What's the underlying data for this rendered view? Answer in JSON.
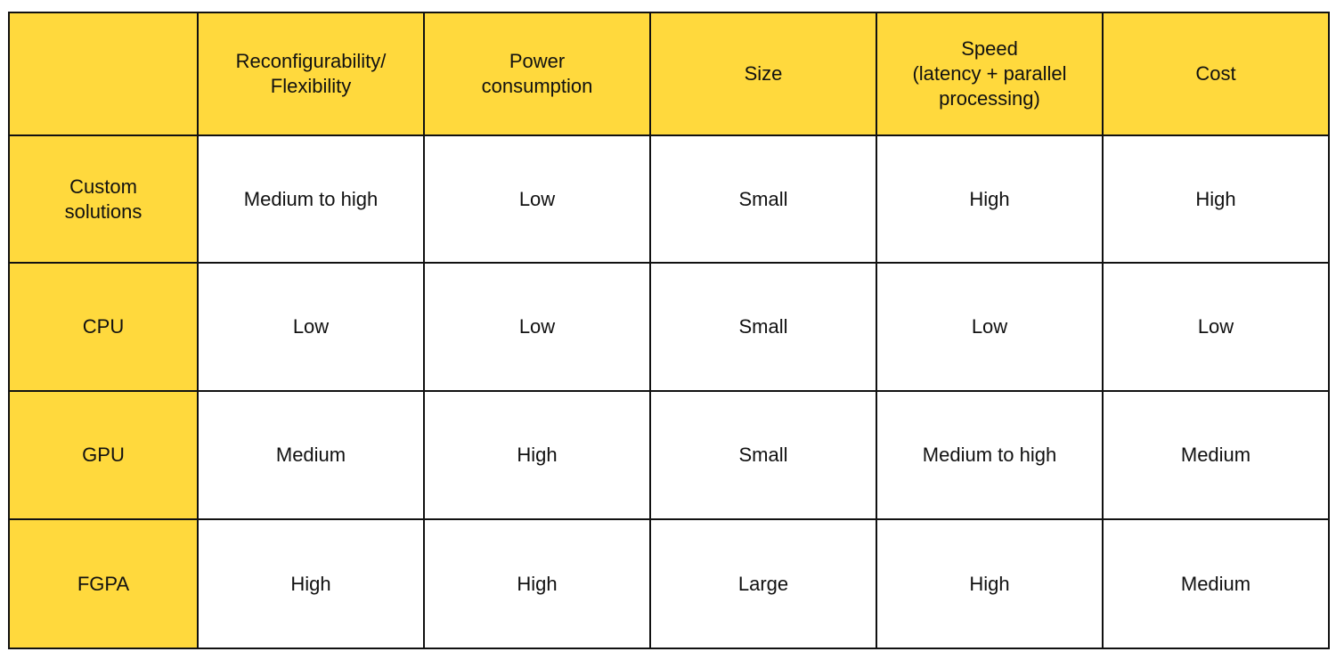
{
  "chart_data": {
    "type": "table",
    "columns": [
      "",
      "Reconfigurability/\nFlexibility",
      "Power\nconsumption",
      "Size",
      "Speed\n(latency + parallel\nprocessing)",
      "Cost"
    ],
    "rows": [
      {
        "label": "Custom\nsolutions",
        "cells": [
          "Medium to high",
          "Low",
          "Small",
          "High",
          "High"
        ]
      },
      {
        "label": "CPU",
        "cells": [
          "Low",
          "Low",
          "Small",
          "Low",
          "Low"
        ]
      },
      {
        "label": "GPU",
        "cells": [
          "Medium",
          "High",
          "Small",
          "Medium to high",
          "Medium"
        ]
      },
      {
        "label": "FGPA",
        "cells": [
          "High",
          "High",
          "Large",
          "High",
          "Medium"
        ]
      }
    ],
    "colors": {
      "header_fill": "#ffd93d",
      "cell_fill": "#ffffff",
      "border": "#111111"
    }
  }
}
